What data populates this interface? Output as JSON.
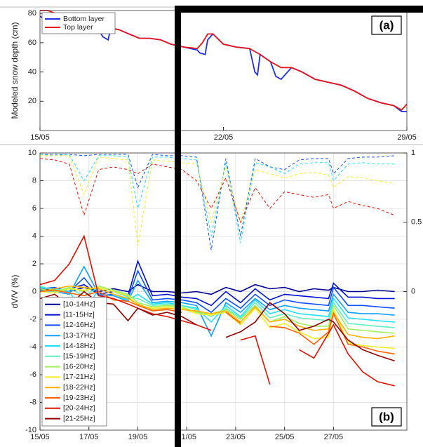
{
  "chart_data": [
    {
      "type": "line",
      "ylabel": "Modeled snow depth (cm)",
      "annotation": "(a)",
      "xlim": [
        15,
        29
      ],
      "xticks": [
        {
          "value": 15,
          "label": "15/05"
        },
        {
          "value": 22,
          "label": "22/05"
        },
        {
          "value": 29,
          "label": "29/05"
        }
      ],
      "ylim": [
        0,
        82
      ],
      "yticks": [
        20,
        40,
        60,
        80
      ],
      "grid": false,
      "legend": "upper left",
      "series": [
        {
          "name": "Bottom layer",
          "color": "#1f2fe0",
          "x": [
            15,
            15.2,
            15.4,
            15.6,
            16.0,
            16.4,
            16.8,
            17.2,
            17.4,
            17.6,
            17.7,
            18.0,
            18.4,
            18.8,
            19.2,
            19.6,
            20.0,
            20.5,
            21.0,
            21.1,
            21.3,
            21.4,
            21.6,
            22.0,
            22.5,
            23.0,
            23.2,
            23.3,
            23.4,
            23.8,
            24.0,
            24.2,
            24.6,
            25.0,
            25.5,
            26.0,
            26.5,
            27.0,
            27.5,
            28.0,
            28.5,
            28.8,
            29.0
          ],
          "values": [
            78,
            76,
            80,
            79,
            79,
            78,
            75,
            70,
            64,
            62,
            70,
            69,
            66,
            63,
            63,
            62,
            59,
            57,
            55,
            53,
            52,
            62,
            66,
            59,
            57,
            56,
            40,
            38,
            52,
            47,
            37,
            35,
            43,
            40,
            35,
            33,
            31,
            27,
            22,
            19,
            17,
            13,
            13
          ]
        },
        {
          "name": "Top layer",
          "color": "#e8141c",
          "x": [
            15,
            15.3,
            15.6,
            16.0,
            16.4,
            16.8,
            17.2,
            17.6,
            18.0,
            18.4,
            18.8,
            19.2,
            19.6,
            20.0,
            20.5,
            21.0,
            21.2,
            21.4,
            21.6,
            22.0,
            22.5,
            23.0,
            23.4,
            23.8,
            24.2,
            24.6,
            25.0,
            25.5,
            26.0,
            26.5,
            27.0,
            27.5,
            28.0,
            28.5,
            28.8,
            29.0
          ],
          "values": [
            82,
            82,
            80,
            79,
            78,
            75,
            70,
            70,
            69,
            66,
            63,
            63,
            62,
            59,
            57,
            56,
            60,
            66,
            66,
            59,
            57,
            56,
            52,
            47,
            43,
            43,
            40,
            35,
            33,
            31,
            27,
            22,
            19,
            17,
            14,
            18
          ]
        }
      ]
    },
    {
      "type": "line",
      "ylabel": "dV/V (%)",
      "annotation": "(b)",
      "xlim": [
        15,
        30
      ],
      "xticks": [
        {
          "value": 15,
          "label": "15/05"
        },
        {
          "value": 17,
          "label": "17/05"
        },
        {
          "value": 19,
          "label": "19/05"
        },
        {
          "value": 21,
          "label": "21/05"
        },
        {
          "value": 23,
          "label": "23/05"
        },
        {
          "value": 25,
          "label": "25/05"
        },
        {
          "value": 27,
          "label": "27/05"
        }
      ],
      "ylim": [
        -10,
        10
      ],
      "yticks": [
        -10,
        -8,
        -6,
        -4,
        -2,
        0,
        2,
        4,
        6,
        8,
        10
      ],
      "y2lim": [
        -1,
        1
      ],
      "y2ticks": [
        0,
        0.5,
        1
      ],
      "grid": true,
      "legend": "lower left",
      "x": [
        15,
        15.6,
        16.2,
        16.8,
        17.4,
        18,
        18.6,
        19,
        19.6,
        20.2,
        20.8,
        21.4,
        22,
        22.6,
        23.2,
        23.8,
        24.4,
        25,
        25.6,
        26.2,
        26.8,
        27,
        27.6,
        28.2,
        28.8,
        29.5
      ],
      "series": [
        {
          "name": "[10-14Hz]",
          "color": "#000090",
          "values": [
            0.1,
            0.2,
            0,
            0.3,
            0,
            0.2,
            0,
            0.5,
            0,
            0,
            -0.1,
            0,
            -0.2,
            0.3,
            0,
            0.5,
            0.2,
            0.3,
            0,
            0.2,
            0.1,
            0.3,
            0,
            0,
            0.1,
            0
          ]
        },
        {
          "name": "[11-15Hz]",
          "color": "#0010d0",
          "values": [
            0,
            0.1,
            0.2,
            0.5,
            -0.2,
            0,
            -0.3,
            2.2,
            -0.3,
            -0.2,
            -0.4,
            -0.5,
            -1,
            0,
            -0.8,
            0.2,
            -0.6,
            -0.2,
            -0.3,
            -0.4,
            -0.5,
            0.6,
            -0.4,
            -0.4,
            -0.5,
            -0.5
          ]
        },
        {
          "name": "[12-16Hz]",
          "color": "#1050ff",
          "values": [
            0.2,
            0.3,
            0,
            1,
            -0.3,
            -0.2,
            -0.5,
            1.5,
            -0.6,
            -0.5,
            -0.6,
            -0.8,
            -1.5,
            -0.5,
            -1.2,
            -0.2,
            -1,
            -0.6,
            -0.8,
            -0.9,
            -1,
            0.3,
            -1,
            -1,
            -1.1,
            -1.2
          ]
        },
        {
          "name": "[13-17Hz]",
          "color": "#10a0ff",
          "values": [
            0.1,
            0,
            -0.2,
            1.8,
            -0.2,
            -0.3,
            -0.7,
            0.8,
            -0.8,
            -0.7,
            -0.8,
            -1,
            -3.2,
            -0.8,
            -1.5,
            -0.5,
            -1.3,
            -1,
            -1.2,
            -1.3,
            -1.4,
            -0.2,
            -1.5,
            -1.6,
            -1.6,
            -1.7
          ]
        },
        {
          "name": "[14-18Hz]",
          "color": "#20e0ff",
          "values": [
            0.3,
            0.2,
            0,
            -1.6,
            0.2,
            -0.2,
            -0.6,
            -0.2,
            -0.9,
            -0.8,
            -1,
            -1.2,
            -2.2,
            -1,
            -1.8,
            -0.6,
            -1.6,
            -1.3,
            -1.6,
            -1.7,
            -1.8,
            -0.5,
            -1.9,
            -2,
            -2.1,
            -2.2
          ]
        },
        {
          "name": "[15-19Hz]",
          "color": "#60f0c0",
          "values": [
            0.4,
            0.1,
            0.2,
            -0.3,
            0.3,
            0,
            -0.4,
            -0.5,
            -1,
            -0.9,
            -1,
            -1.3,
            -1.8,
            -1.2,
            -1.9,
            -0.8,
            -1.9,
            -1.6,
            -1.9,
            -2,
            -2.1,
            -0.8,
            -2.3,
            -2.4,
            -2.5,
            -2.6
          ]
        },
        {
          "name": "[16-20Hz]",
          "color": "#a0f060",
          "values": [
            0.2,
            0,
            0.3,
            0,
            0.4,
            0.1,
            -0.2,
            -0.8,
            -1.1,
            -1,
            -1.1,
            -1.5,
            -1.6,
            -1.3,
            -2,
            -1,
            -2.2,
            -1.8,
            -2.3,
            -2.5,
            -2.5,
            -1,
            -2.7,
            -2.8,
            -2.9,
            -3
          ]
        },
        {
          "name": "[17-21Hz]",
          "color": "#f0f020",
          "values": [
            0,
            -0.1,
            0.2,
            0.1,
            0.3,
            0,
            -0.3,
            -1,
            -1.2,
            -1.1,
            -1.2,
            -1.6,
            -1.7,
            -1.5,
            -2.4,
            -1.2,
            -2.6,
            -2.3,
            -2.9,
            -3.4,
            -3.3,
            -1.3,
            -3.7,
            -3.9,
            -4,
            -4.1
          ]
        },
        {
          "name": "[18-22Hz]",
          "color": "#ffb000",
          "values": [
            0,
            0.2,
            0.4,
            0.3,
            0.2,
            -0.2,
            -0.5,
            -0.9,
            -1.3,
            -1.2,
            -1.3,
            -1.4,
            -1.6,
            -1.4,
            -2.2,
            -1.1,
            -2.2,
            -2,
            -2.5,
            -2.8,
            -2.7,
            -1.5,
            -3.1,
            -3.3,
            -3.4,
            -3.2
          ]
        },
        {
          "name": "[19-23Hz]",
          "color": "#ff6000",
          "values": [
            0,
            0.1,
            -0.1,
            -0.3,
            0,
            -0.6,
            -0.7,
            -1,
            -1.4,
            -1.3,
            -1.5,
            null,
            null,
            -1.5,
            -2.3,
            null,
            -2.5,
            -2.6,
            -3,
            -3.8,
            -2.9,
            -1.6,
            -3.8,
            -4,
            -4.3,
            -4.5
          ]
        },
        {
          "name": "[20-24Hz]",
          "color": "#e01000",
          "values": [
            0.5,
            0.8,
            2,
            4,
            -0.3,
            -0.5,
            -0.9,
            -1.2,
            -1.6,
            -1.8,
            -2.1,
            -2.4,
            -2.8,
            null,
            -3.5,
            -3.2,
            -6.7,
            null,
            -4.2,
            -4.8,
            -3,
            -2.4,
            -4.5,
            -5.8,
            -6.5,
            -6.8
          ]
        },
        {
          "name": "[21-25Hz]",
          "color": "#900000",
          "values": [
            -0.5,
            -0.2,
            -1,
            0,
            -0.8,
            -0.9,
            -2.1,
            -1.2,
            -1.7,
            -1.5,
            -1.8,
            -2.4,
            null,
            -3.3,
            -2.9,
            -2.2,
            -0.8,
            -1.6,
            -2.8,
            -2.5,
            -2,
            -2.2,
            -3.5,
            -4.2,
            -4.6,
            -5
          ]
        },
        {
          "axis": "y2",
          "dashed": true,
          "color": "#1050ff",
          "values": [
            0.99,
            0.99,
            0.99,
            0.98,
            0.99,
            0.99,
            0.99,
            0.75,
            0.99,
            0.98,
            0.98,
            0.97,
            0.3,
            0.96,
            0.4,
            0.96,
            0.9,
            0.88,
            0.95,
            0.96,
            0.96,
            0.85,
            0.96,
            0.97,
            0.97,
            0.98
          ]
        },
        {
          "axis": "y2",
          "dashed": true,
          "color": "#20e0ff",
          "values": [
            0.99,
            0.98,
            0.99,
            0.8,
            0.98,
            0.98,
            0.97,
            0.6,
            0.97,
            0.97,
            0.96,
            0.95,
            0.4,
            0.93,
            0.35,
            0.93,
            0.9,
            0.85,
            0.92,
            0.93,
            0.93,
            0.8,
            0.92,
            0.93,
            0.92,
            0.92
          ]
        },
        {
          "axis": "y2",
          "dashed": true,
          "color": "#f0f020",
          "values": [
            0.98,
            0.98,
            0.98,
            0.7,
            0.97,
            0.96,
            0.95,
            0.33,
            0.95,
            0.94,
            0.93,
            0.92,
            0.5,
            0.9,
            0.5,
            0.88,
            0.85,
            0.82,
            0.85,
            0.86,
            0.84,
            0.75,
            0.83,
            0.82,
            0.8,
            0.78
          ]
        },
        {
          "axis": "y2",
          "dashed": true,
          "color": "#e01000",
          "values": [
            0.96,
            0.95,
            0.92,
            0.55,
            0.88,
            0.9,
            0.88,
            0.85,
            0.92,
            0.9,
            0.88,
            0.8,
            0.6,
            0.82,
            0.5,
            0.75,
            0.6,
            0.72,
            0.7,
            0.68,
            0.7,
            0.6,
            0.65,
            0.62,
            0.6,
            0.55
          ]
        }
      ]
    }
  ]
}
